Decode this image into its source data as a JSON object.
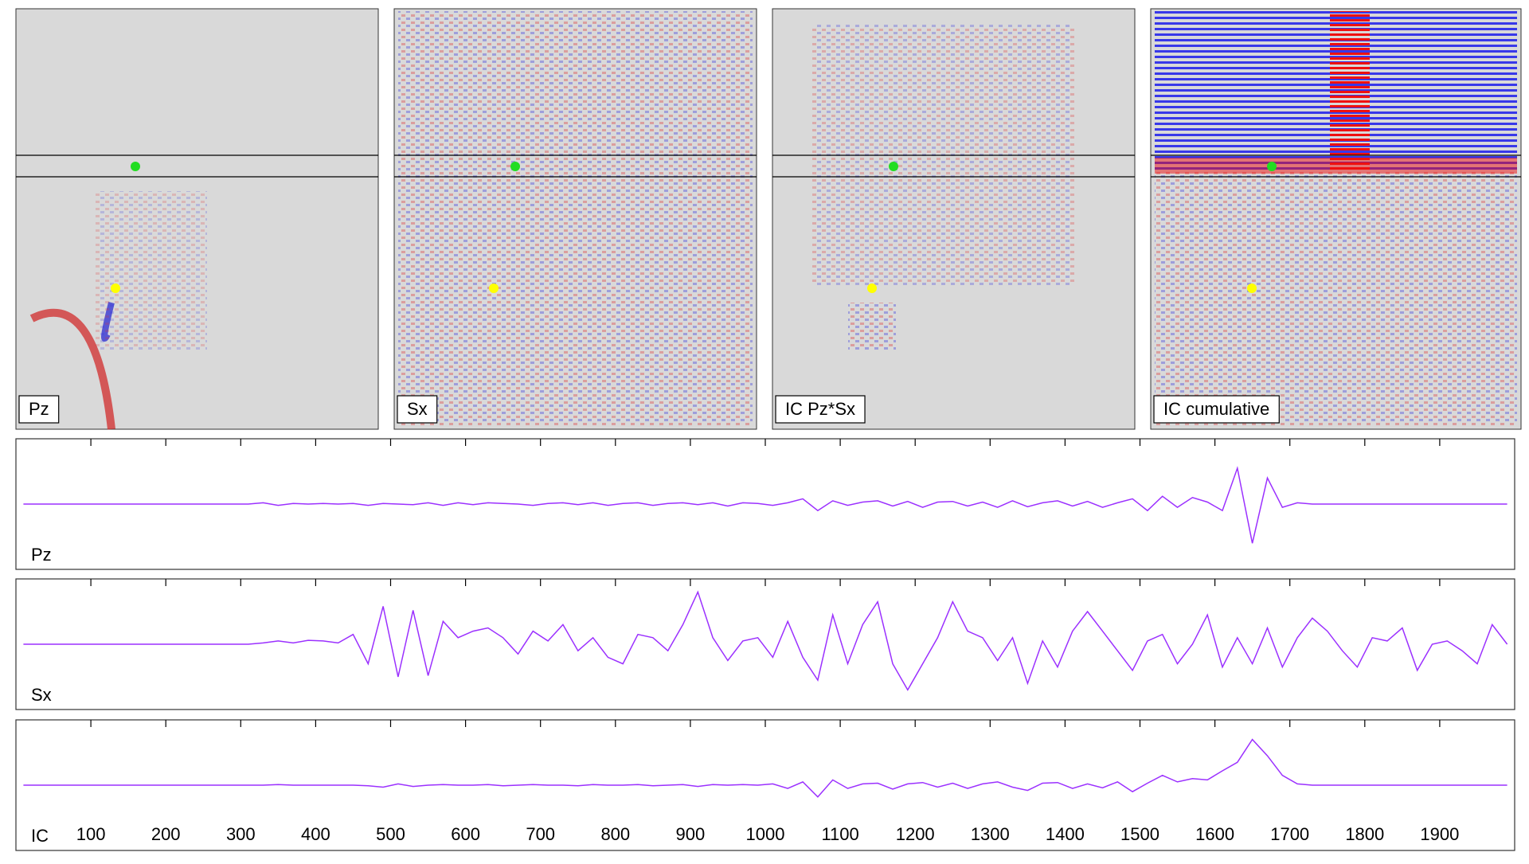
{
  "panels": [
    {
      "label": "Pz"
    },
    {
      "label": "Sx"
    },
    {
      "label": "IC Pz*Sx"
    },
    {
      "label": "IC cumulative"
    }
  ],
  "chart_data": [
    {
      "type": "line",
      "label": "Pz",
      "color": "#9b30ff",
      "xlim": [
        0,
        2000
      ],
      "ylim": [
        -1,
        1
      ],
      "xticks": [
        100,
        200,
        300,
        400,
        500,
        600,
        700,
        800,
        900,
        1000,
        1100,
        1200,
        1300,
        1400,
        1500,
        1600,
        1700,
        1800,
        1900
      ],
      "tick_labels": false,
      "x": [
        10,
        30,
        50,
        70,
        90,
        110,
        130,
        150,
        170,
        190,
        210,
        230,
        250,
        270,
        290,
        310,
        330,
        350,
        370,
        390,
        410,
        430,
        450,
        470,
        490,
        510,
        530,
        550,
        570,
        590,
        610,
        630,
        650,
        670,
        690,
        710,
        730,
        750,
        770,
        790,
        810,
        830,
        850,
        870,
        890,
        910,
        930,
        950,
        970,
        990,
        1010,
        1030,
        1050,
        1070,
        1090,
        1110,
        1130,
        1150,
        1170,
        1190,
        1210,
        1230,
        1250,
        1270,
        1290,
        1310,
        1330,
        1350,
        1370,
        1390,
        1410,
        1430,
        1450,
        1470,
        1490,
        1510,
        1530,
        1550,
        1570,
        1590,
        1610,
        1630,
        1650,
        1670,
        1690,
        1710,
        1730,
        1750,
        1770,
        1790,
        1810,
        1830,
        1850,
        1870,
        1890,
        1910,
        1930,
        1950,
        1970,
        1990
      ],
      "values": [
        0,
        0,
        0,
        0,
        0,
        0,
        0,
        0,
        0,
        0,
        0,
        0,
        0,
        0,
        0,
        0,
        0.02,
        -0.02,
        0.01,
        0,
        0.01,
        0,
        0.01,
        -0.02,
        0.01,
        0,
        -0.01,
        0.02,
        -0.02,
        0.02,
        -0.01,
        0.02,
        0.01,
        0,
        -0.02,
        0.01,
        0.02,
        -0.01,
        0.02,
        -0.02,
        0.01,
        0.02,
        -0.02,
        0.01,
        0.02,
        -0.01,
        0.02,
        -0.03,
        0.02,
        0.01,
        -0.02,
        0.02,
        0.08,
        -0.1,
        0.05,
        -0.02,
        0.03,
        0.05,
        -0.03,
        0.04,
        -0.05,
        0.03,
        0.04,
        -0.03,
        0.03,
        -0.05,
        0.05,
        -0.04,
        0.02,
        0.05,
        -0.03,
        0.04,
        -0.05,
        0.02,
        0.08,
        -0.1,
        0.12,
        -0.05,
        0.1,
        0.03,
        -0.1,
        0.55,
        -0.6,
        0.4,
        -0.05,
        0.02,
        0,
        0,
        0,
        0,
        0,
        0,
        0,
        0,
        0,
        0,
        0,
        0,
        0,
        0
      ]
    },
    {
      "type": "line",
      "label": "Sx",
      "color": "#9b30ff",
      "xlim": [
        0,
        2000
      ],
      "ylim": [
        -1,
        1
      ],
      "xticks": [
        100,
        200,
        300,
        400,
        500,
        600,
        700,
        800,
        900,
        1000,
        1100,
        1200,
        1300,
        1400,
        1500,
        1600,
        1700,
        1800,
        1900
      ],
      "tick_labels": false,
      "x": [
        10,
        30,
        50,
        70,
        90,
        110,
        130,
        150,
        170,
        190,
        210,
        230,
        250,
        270,
        290,
        310,
        330,
        350,
        370,
        390,
        410,
        430,
        450,
        470,
        490,
        510,
        530,
        550,
        570,
        590,
        610,
        630,
        650,
        670,
        690,
        710,
        730,
        750,
        770,
        790,
        810,
        830,
        850,
        870,
        890,
        910,
        930,
        950,
        970,
        990,
        1010,
        1030,
        1050,
        1070,
        1090,
        1110,
        1130,
        1150,
        1170,
        1190,
        1210,
        1230,
        1250,
        1270,
        1290,
        1310,
        1330,
        1350,
        1370,
        1390,
        1410,
        1430,
        1450,
        1470,
        1490,
        1510,
        1530,
        1550,
        1570,
        1590,
        1610,
        1630,
        1650,
        1670,
        1690,
        1710,
        1730,
        1750,
        1770,
        1790,
        1810,
        1830,
        1850,
        1870,
        1890,
        1910,
        1930,
        1950,
        1970,
        1990
      ],
      "values": [
        0,
        0,
        0,
        0,
        0,
        0,
        0,
        0,
        0,
        0,
        0,
        0,
        0,
        0,
        0,
        0,
        0.02,
        0.05,
        0.02,
        0.06,
        0.05,
        0.02,
        0.15,
        -0.3,
        0.58,
        -0.5,
        0.52,
        -0.48,
        0.35,
        0.1,
        0.2,
        0.25,
        0.1,
        -0.15,
        0.2,
        0.05,
        0.3,
        -0.1,
        0.1,
        -0.2,
        -0.3,
        0.15,
        0.1,
        -0.1,
        0.3,
        0.8,
        0.1,
        -0.25,
        0.05,
        0.1,
        -0.2,
        0.35,
        -0.2,
        -0.55,
        0.45,
        -0.3,
        0.3,
        0.65,
        -0.3,
        -0.7,
        -0.3,
        0.1,
        0.65,
        0.2,
        0.1,
        -0.25,
        0.1,
        -0.6,
        0.05,
        -0.35,
        0.2,
        0.5,
        0.2,
        -0.1,
        -0.4,
        0.05,
        0.15,
        -0.3,
        0,
        0.45,
        -0.35,
        0.1,
        -0.3,
        0.25,
        -0.35,
        0.1,
        0.4,
        0.2,
        -0.1,
        -0.35,
        0.1,
        0.05,
        0.25,
        -0.4,
        0,
        0.05,
        -0.1,
        -0.3,
        0.3,
        0
      ]
    },
    {
      "type": "line",
      "label": "IC",
      "color": "#9b30ff",
      "xlim": [
        0,
        2000
      ],
      "ylim": [
        -1,
        1
      ],
      "xticks": [
        100,
        200,
        300,
        400,
        500,
        600,
        700,
        800,
        900,
        1000,
        1100,
        1200,
        1300,
        1400,
        1500,
        1600,
        1700,
        1800,
        1900
      ],
      "tick_labels": true,
      "x": [
        10,
        30,
        50,
        70,
        90,
        110,
        130,
        150,
        170,
        190,
        210,
        230,
        250,
        270,
        290,
        310,
        330,
        350,
        370,
        390,
        410,
        430,
        450,
        470,
        490,
        510,
        530,
        550,
        570,
        590,
        610,
        630,
        650,
        670,
        690,
        710,
        730,
        750,
        770,
        790,
        810,
        830,
        850,
        870,
        890,
        910,
        930,
        950,
        970,
        990,
        1010,
        1030,
        1050,
        1070,
        1090,
        1110,
        1130,
        1150,
        1170,
        1190,
        1210,
        1230,
        1250,
        1270,
        1290,
        1310,
        1330,
        1350,
        1370,
        1390,
        1410,
        1430,
        1450,
        1470,
        1490,
        1510,
        1530,
        1550,
        1570,
        1590,
        1610,
        1630,
        1650,
        1670,
        1690,
        1710,
        1730,
        1750,
        1770,
        1790,
        1810,
        1830,
        1850,
        1870,
        1890,
        1910,
        1930,
        1950,
        1970,
        1990
      ],
      "values": [
        0,
        0,
        0,
        0,
        0,
        0,
        0,
        0,
        0,
        0,
        0,
        0,
        0,
        0,
        0,
        0,
        0,
        0.01,
        0,
        0,
        0,
        0,
        0,
        -0.01,
        -0.03,
        0.02,
        -0.02,
        0,
        0.01,
        0,
        0,
        0.01,
        -0.01,
        0,
        0.01,
        0,
        0,
        -0.01,
        0.01,
        0,
        0,
        0.01,
        -0.01,
        0,
        0.01,
        -0.02,
        0.01,
        0,
        0.01,
        0,
        0.02,
        -0.05,
        0.05,
        -0.18,
        0.08,
        -0.05,
        0.02,
        0.03,
        -0.06,
        0.02,
        0.04,
        -0.03,
        0.03,
        -0.05,
        0.02,
        0.05,
        -0.03,
        -0.08,
        0.03,
        0.04,
        -0.05,
        0.02,
        -0.04,
        0.05,
        -0.1,
        0.03,
        0.15,
        0.05,
        0.1,
        0.08,
        0.22,
        0.35,
        0.7,
        0.45,
        0.15,
        0.02,
        0,
        0,
        0,
        0,
        0,
        0,
        0,
        0,
        0,
        0,
        0,
        0,
        0,
        0
      ]
    }
  ]
}
